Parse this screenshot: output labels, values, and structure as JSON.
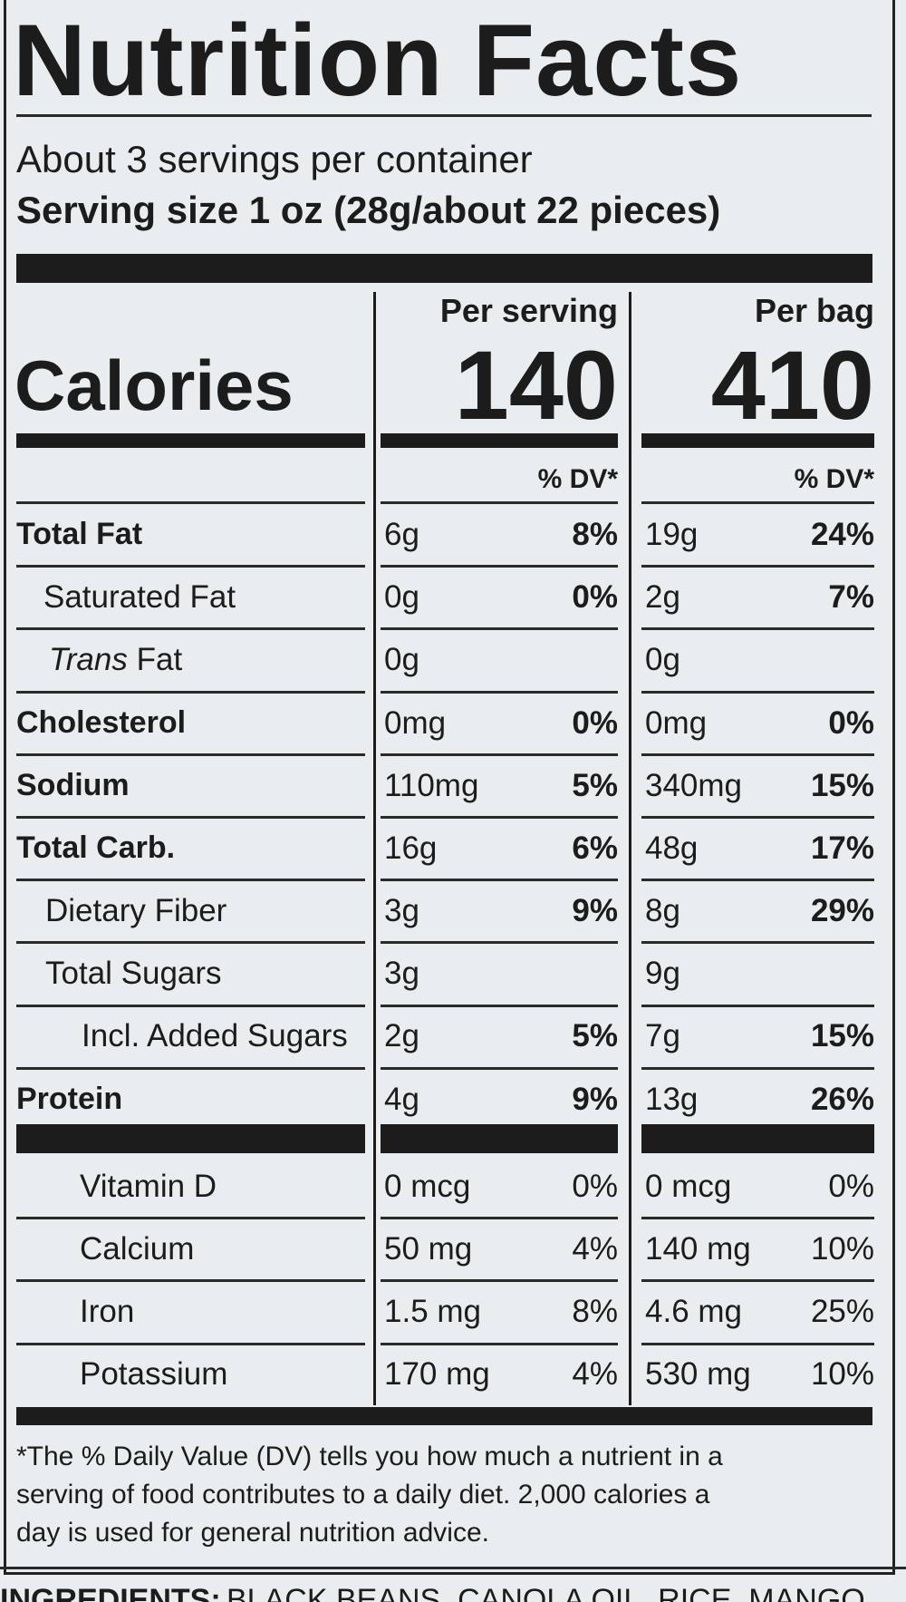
{
  "title": "Nutrition Facts",
  "servings": "About 3 servings per container",
  "serving_size": "Serving size 1 oz (28g/about 22 pieces)",
  "calories": {
    "label": "Calories",
    "columns": [
      {
        "header": "Per serving",
        "value": "140",
        "dv_header": "% DV*"
      },
      {
        "header": "Per bag",
        "value": "410",
        "dv_header": "% DV*"
      }
    ]
  },
  "nutrients": [
    {
      "name": "Total Fat",
      "per_serving": [
        "6g",
        "8%"
      ],
      "per_bag": [
        "19g",
        "24%"
      ]
    },
    {
      "name": "Saturated Fat",
      "per_serving": [
        "0g",
        "0%"
      ],
      "per_bag": [
        "2g",
        "7%"
      ]
    },
    {
      "name_italic": "Trans",
      "name": "Fat",
      "per_serving": [
        "0g"
      ],
      "per_bag": [
        "0g"
      ]
    },
    {
      "name": "Cholesterol",
      "per_serving": [
        "0mg",
        "0%"
      ],
      "per_bag": [
        "0mg",
        "0%"
      ]
    },
    {
      "name": "Sodium",
      "per_serving": [
        "110mg",
        "5%"
      ],
      "per_bag": [
        "340mg",
        "15%"
      ]
    },
    {
      "name": "Total Carb.",
      "per_serving": [
        "16g",
        "6%"
      ],
      "per_bag": [
        "48g",
        "17%"
      ]
    },
    {
      "name": "Dietary Fiber",
      "per_serving": [
        "3g",
        "9%"
      ],
      "per_bag": [
        "8g",
        "29%"
      ]
    },
    {
      "name": "Total Sugars",
      "per_serving": [
        "3g"
      ],
      "per_bag": [
        "9g"
      ]
    },
    {
      "name": "Incl. Added Sugars",
      "per_serving": [
        "2g",
        "5%"
      ],
      "per_bag": [
        "7g",
        "15%"
      ]
    },
    {
      "name": "Protein",
      "per_serving": [
        "4g",
        "9%"
      ],
      "per_bag": [
        "13g",
        "26%"
      ]
    }
  ],
  "vitamins": [
    {
      "name": "Vitamin D",
      "per_serving": [
        "0 mcg",
        "0%"
      ],
      "per_bag": [
        "0 mcg",
        "0%"
      ]
    },
    {
      "name": "Calcium",
      "per_serving": [
        "50 mg",
        "4%"
      ],
      "per_bag": [
        "140 mg",
        "10%"
      ]
    },
    {
      "name": "Iron",
      "per_serving": [
        "1.5 mg",
        "8%"
      ],
      "per_bag": [
        "4.6 mg",
        "25%"
      ]
    },
    {
      "name": "Potassium",
      "per_serving": [
        "170 mg",
        "4%"
      ],
      "per_bag": [
        "530 mg",
        "10%"
      ]
    }
  ],
  "footnote": [
    "*The % Daily Value (DV) tells you how much a nutrient in a",
    "serving of food contributes to a daily diet. 2,000 calories a",
    "day is used for general nutrition advice."
  ],
  "ingredients": {
    "label": "INGREDIENTS:",
    "text": "BLACK BEANS, CANOLA OIL, RICE, MANGO"
  }
}
